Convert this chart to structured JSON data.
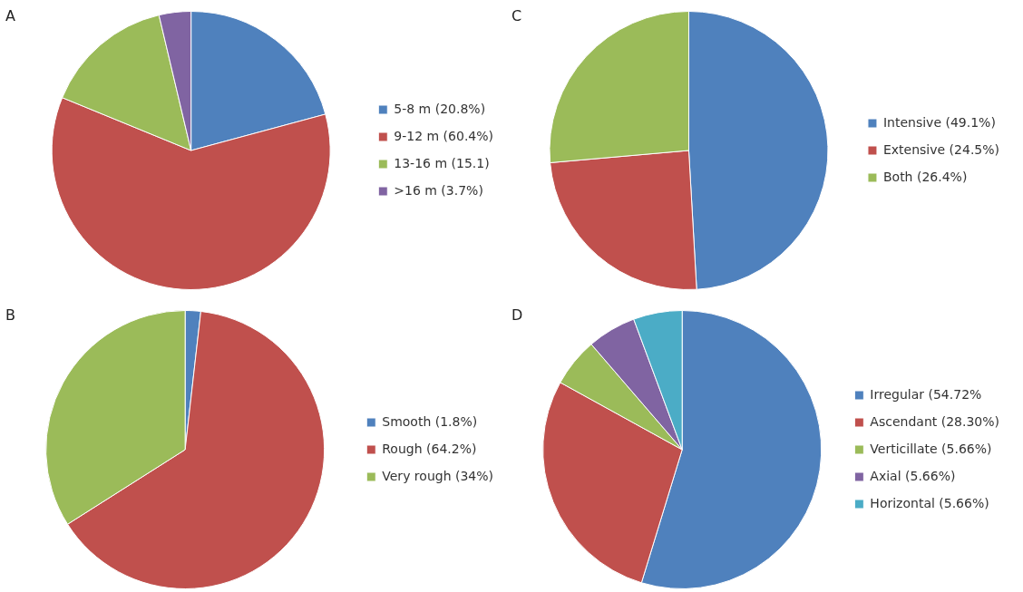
{
  "chart_data": [
    {
      "type": "pie",
      "title": "A",
      "categories": [
        "5-8 m (20.8%)",
        "9-12 m (60.4%)",
        "13-16 m (15.1)",
        ">16 m (3.7%)"
      ],
      "values": [
        20.8,
        60.4,
        15.1,
        3.7
      ],
      "colors": [
        "#4f81bd",
        "#c0504d",
        "#9bbb59",
        "#8064a2"
      ],
      "legend": "right"
    },
    {
      "type": "pie",
      "title": "C",
      "categories": [
        "Intensive (49.1%)",
        "Extensive (24.5%)",
        "Both (26.4%)"
      ],
      "values": [
        49.1,
        24.5,
        26.4
      ],
      "colors": [
        "#4f81bd",
        "#c0504d",
        "#9bbb59"
      ],
      "legend": "right"
    },
    {
      "type": "pie",
      "title": "B",
      "categories": [
        "Smooth (1.8%)",
        "Rough (64.2%)",
        "Very rough (34%)"
      ],
      "values": [
        1.8,
        64.2,
        34
      ],
      "colors": [
        "#4f81bd",
        "#c0504d",
        "#9bbb59"
      ],
      "legend": "right"
    },
    {
      "type": "pie",
      "title": "D",
      "categories": [
        "Irregular (54.72%",
        "Ascendant (28.30%)",
        "Verticillate (5.66%)",
        "Axial (5.66%)",
        "Horizontal (5.66%)"
      ],
      "values": [
        54.72,
        28.3,
        5.66,
        5.66,
        5.66
      ],
      "colors": [
        "#4f81bd",
        "#c0504d",
        "#9bbb59",
        "#8064a2",
        "#4bacc6"
      ],
      "legend": "right"
    }
  ]
}
